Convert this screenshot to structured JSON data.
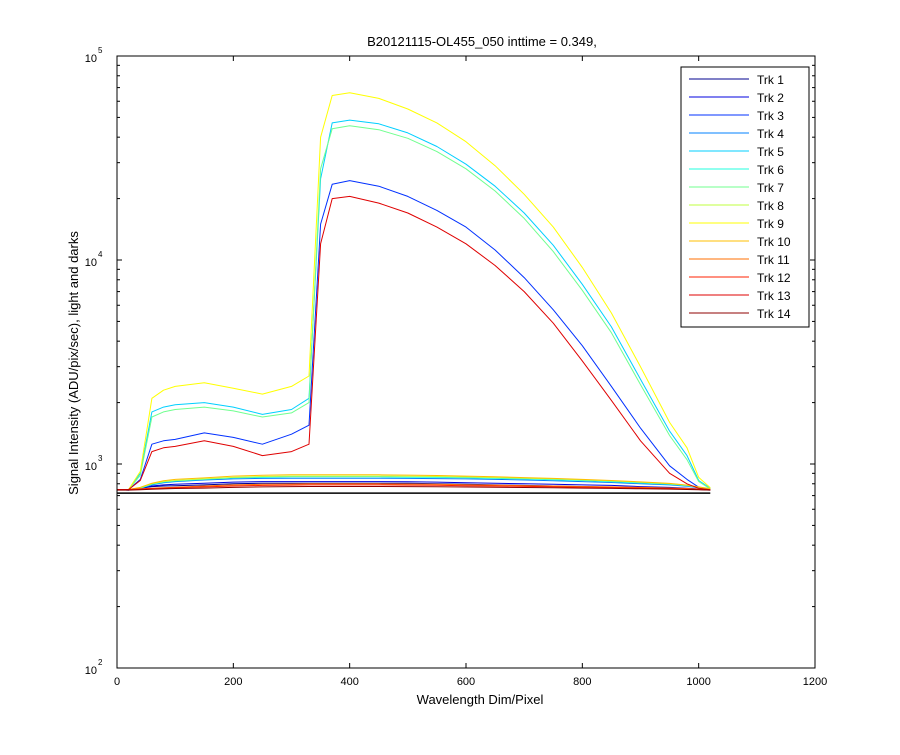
{
  "chart_data": {
    "type": "line",
    "title": "B20121115-OL455_050 inttime = 0.349,",
    "xlabel": "Wavelength Dim/Pixel",
    "ylabel": "Signal Intensity (ADU/pix/sec), light and darks",
    "xlim": [
      0,
      1200
    ],
    "ylim": [
      100,
      100000
    ],
    "yscale": "log",
    "x_ticks": [
      "0",
      "200",
      "400",
      "600",
      "800",
      "1000",
      "1200"
    ],
    "y_ticks": [
      {
        "base": "10",
        "exp": "2",
        "value": 100
      },
      {
        "base": "10",
        "exp": "3",
        "value": 1000
      },
      {
        "base": "10",
        "exp": "4",
        "value": 10000
      },
      {
        "base": "10",
        "exp": "5",
        "value": 100000
      }
    ],
    "grid": false,
    "legend_position": "top-right",
    "x": [
      0,
      20,
      40,
      60,
      80,
      100,
      150,
      200,
      250,
      300,
      330,
      350,
      370,
      400,
      450,
      500,
      550,
      600,
      650,
      700,
      750,
      800,
      850,
      900,
      950,
      980,
      1000,
      1020
    ],
    "series": [
      {
        "name": "Trk 1",
        "color": "#00008f",
        "values": [
          750,
          745,
          760,
          775,
          780,
          782,
          790,
          800,
          805,
          805,
          805,
          805,
          805,
          805,
          805,
          805,
          800,
          795,
          790,
          785,
          780,
          775,
          770,
          765,
          760,
          755,
          750,
          745
        ]
      },
      {
        "name": "Trk 2",
        "color": "#0000df",
        "values": [
          750,
          745,
          760,
          780,
          790,
          795,
          805,
          815,
          820,
          820,
          820,
          820,
          820,
          820,
          820,
          818,
          815,
          810,
          805,
          800,
          795,
          790,
          785,
          775,
          768,
          760,
          755,
          748
        ]
      },
      {
        "name": "Trk 3",
        "color": "#0030ff",
        "values": [
          750,
          750,
          840,
          1250,
          1300,
          1320,
          1420,
          1350,
          1250,
          1400,
          1550,
          15000,
          23500,
          24500,
          23000,
          20500,
          17500,
          14500,
          11200,
          8200,
          5700,
          3800,
          2400,
          1500,
          980,
          840,
          770,
          750
        ]
      },
      {
        "name": "Trk 4",
        "color": "#0080ff",
        "values": [
          750,
          750,
          760,
          790,
          810,
          820,
          835,
          845,
          850,
          852,
          852,
          852,
          852,
          852,
          852,
          850,
          848,
          845,
          840,
          835,
          828,
          820,
          812,
          800,
          790,
          778,
          765,
          752
        ]
      },
      {
        "name": "Trk 5",
        "color": "#00cfff",
        "values": [
          750,
          750,
          900,
          1800,
          1900,
          1950,
          2000,
          1900,
          1750,
          1850,
          2100,
          25000,
          47000,
          48500,
          46500,
          42000,
          36000,
          29500,
          23000,
          17000,
          11800,
          7600,
          4700,
          2600,
          1450,
          1100,
          830,
          760
        ]
      },
      {
        "name": "Trk 6",
        "color": "#20ffdf",
        "values": [
          750,
          750,
          760,
          795,
          815,
          825,
          840,
          855,
          860,
          865,
          865,
          865,
          865,
          865,
          865,
          862,
          860,
          856,
          850,
          845,
          838,
          830,
          820,
          808,
          795,
          782,
          768,
          755
        ]
      },
      {
        "name": "Trk 7",
        "color": "#70ff8f",
        "values": [
          750,
          750,
          880,
          1700,
          1800,
          1850,
          1900,
          1820,
          1700,
          1780,
          2000,
          28000,
          44000,
          45500,
          43500,
          39500,
          34000,
          28000,
          21800,
          16000,
          11000,
          7100,
          4400,
          2450,
          1380,
          1050,
          820,
          755
        ]
      },
      {
        "name": "Trk 8",
        "color": "#bfff3f",
        "values": [
          750,
          750,
          765,
          800,
          820,
          830,
          845,
          860,
          868,
          872,
          872,
          872,
          872,
          872,
          872,
          870,
          868,
          864,
          858,
          852,
          845,
          836,
          826,
          814,
          800,
          786,
          770,
          756
        ]
      },
      {
        "name": "Trk 9",
        "color": "#ffff00",
        "values": [
          750,
          750,
          920,
          2100,
          2300,
          2400,
          2500,
          2350,
          2200,
          2400,
          2700,
          40000,
          64000,
          66000,
          62000,
          55000,
          47000,
          38000,
          29000,
          21000,
          14500,
          9200,
          5500,
          3000,
          1600,
          1200,
          860,
          765
        ]
      },
      {
        "name": "Trk 10",
        "color": "#ffbf00",
        "values": [
          750,
          750,
          768,
          805,
          828,
          840,
          855,
          872,
          880,
          885,
          885,
          885,
          885,
          885,
          885,
          882,
          878,
          872,
          865,
          858,
          850,
          840,
          830,
          817,
          803,
          788,
          772,
          757
        ]
      },
      {
        "name": "Trk 11",
        "color": "#ff6f00",
        "values": [
          750,
          750,
          755,
          760,
          765,
          770,
          780,
          790,
          795,
          798,
          800,
          800,
          800,
          800,
          800,
          798,
          795,
          792,
          788,
          784,
          780,
          776,
          772,
          768,
          763,
          758,
          753,
          748
        ]
      },
      {
        "name": "Trk 12",
        "color": "#ff2000",
        "values": [
          750,
          750,
          755,
          758,
          762,
          765,
          772,
          780,
          785,
          788,
          790,
          790,
          790,
          790,
          790,
          788,
          786,
          783,
          780,
          777,
          774,
          770,
          766,
          762,
          758,
          754,
          750,
          746
        ]
      },
      {
        "name": "Trk 13",
        "color": "#df0000",
        "values": [
          750,
          750,
          830,
          1150,
          1200,
          1220,
          1300,
          1220,
          1100,
          1150,
          1250,
          12000,
          20000,
          20500,
          19000,
          17000,
          14500,
          12000,
          9400,
          7000,
          4900,
          3200,
          2050,
          1300,
          900,
          800,
          760,
          748
        ]
      },
      {
        "name": "Trk 14",
        "color": "#8f0000",
        "values": [
          745,
          745,
          748,
          752,
          755,
          758,
          762,
          768,
          772,
          775,
          776,
          776,
          776,
          776,
          776,
          775,
          773,
          771,
          769,
          767,
          765,
          762,
          759,
          756,
          753,
          750,
          747,
          745
        ]
      },
      {
        "color": "#000000",
        "values": [
          720,
          720,
          720,
          720,
          720,
          720,
          720,
          720,
          720,
          720,
          720,
          720,
          720,
          720,
          720,
          720,
          720,
          720,
          720,
          720,
          720,
          720,
          720,
          720,
          720,
          720,
          720,
          720
        ]
      }
    ]
  }
}
